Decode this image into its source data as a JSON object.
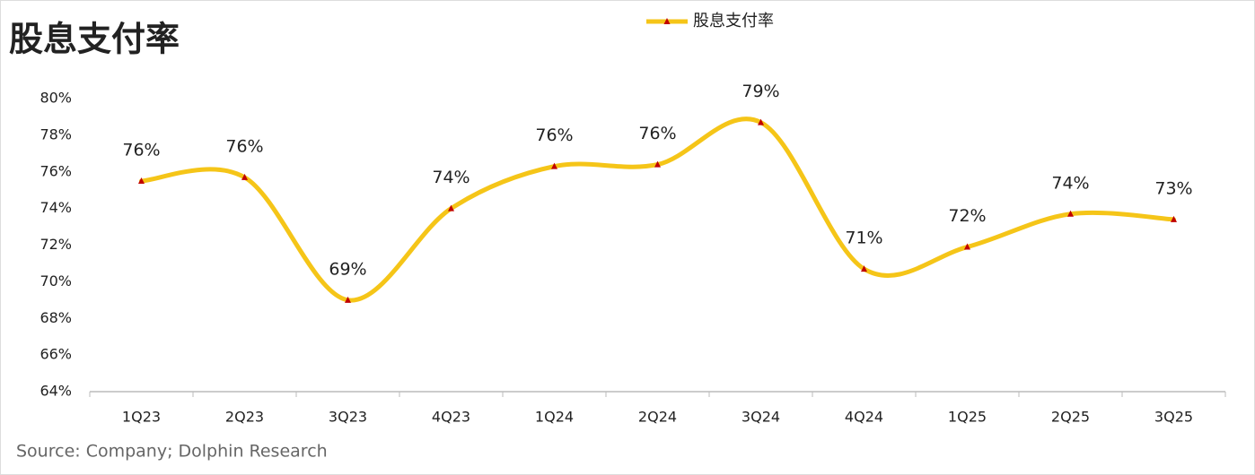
{
  "chart_data": {
    "type": "line",
    "title": "股息支付率",
    "categories": [
      "1Q23",
      "2Q23",
      "3Q23",
      "4Q23",
      "1Q24",
      "2Q24",
      "3Q24",
      "4Q24",
      "1Q25",
      "2Q25",
      "3Q25"
    ],
    "series": [
      {
        "name": "股息支付率",
        "color": "#f5c518",
        "marker_color": "#c00000",
        "values": [
          75.5,
          75.7,
          69.0,
          74.0,
          76.3,
          76.4,
          78.7,
          70.7,
          71.9,
          73.7,
          73.4
        ],
        "value_labels": [
          "76%",
          "76%",
          "69%",
          "74%",
          "76%",
          "76%",
          "79%",
          "71%",
          "72%",
          "74%",
          "73%"
        ]
      }
    ],
    "ylim": [
      64,
      80
    ],
    "yticks": [
      {
        "value": 64,
        "label": "64%"
      },
      {
        "value": 66,
        "label": "66%"
      },
      {
        "value": 68,
        "label": "68%"
      },
      {
        "value": 70,
        "label": "70%"
      },
      {
        "value": 72,
        "label": "72%"
      },
      {
        "value": 74,
        "label": "74%"
      },
      {
        "value": 76,
        "label": "76%"
      },
      {
        "value": 78,
        "label": "78%"
      },
      {
        "value": 80,
        "label": "80%"
      }
    ],
    "grid": false,
    "smooth": true,
    "legend": "top",
    "source": "Source: Company; Dolphin Research"
  }
}
